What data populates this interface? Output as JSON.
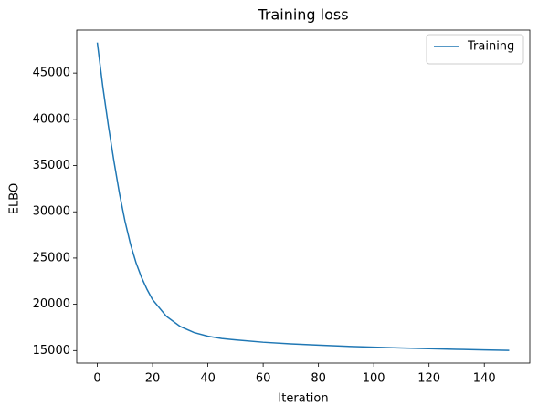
{
  "chart_data": {
    "type": "line",
    "title": "Training loss",
    "xlabel": "Iteration",
    "ylabel": "ELBO",
    "x": [
      0,
      2,
      4,
      6,
      8,
      10,
      12,
      14,
      16,
      18,
      20,
      25,
      30,
      35,
      40,
      45,
      50,
      60,
      70,
      80,
      90,
      100,
      110,
      120,
      130,
      140,
      149
    ],
    "series": [
      {
        "name": "Training",
        "color": "#1f77b4",
        "values": [
          48300,
          43500,
          39300,
          35500,
          32000,
          29000,
          26500,
          24500,
          22900,
          21600,
          20500,
          18700,
          17600,
          16950,
          16550,
          16300,
          16150,
          15900,
          15720,
          15580,
          15460,
          15360,
          15280,
          15200,
          15130,
          15070,
          15020
        ]
      }
    ],
    "xlim": [
      -7.45,
      156.45
    ],
    "xticks": [
      0,
      20,
      40,
      60,
      80,
      100,
      120,
      140
    ],
    "ylim": [
      13650,
      49650
    ],
    "yticks": [
      15000,
      20000,
      25000,
      30000,
      35000,
      40000,
      45000
    ],
    "legend": "upper right",
    "grid": false
  }
}
